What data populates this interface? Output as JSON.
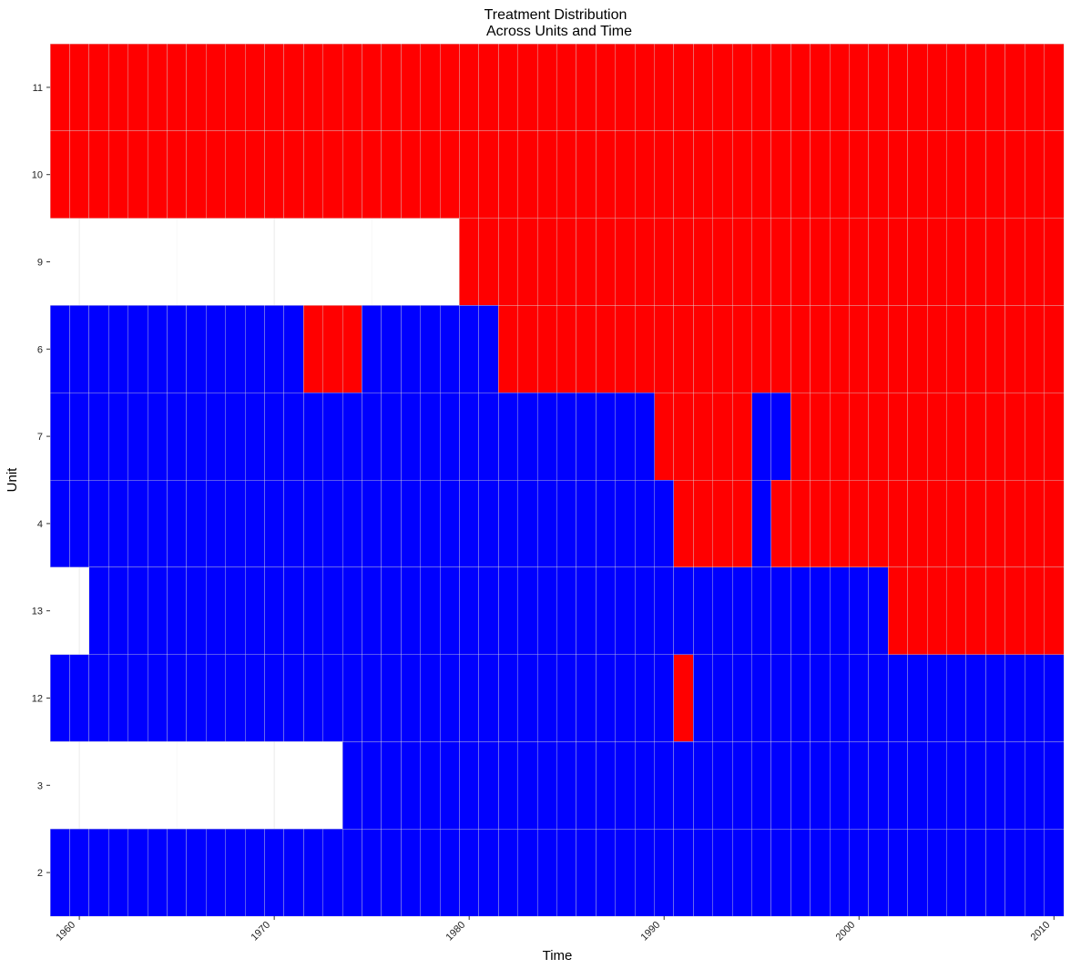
{
  "chart_data": {
    "type": "heatmap",
    "title_line1": "Treatment Distribution",
    "title_line2": "Across Units and Time",
    "xlabel": "Time",
    "ylabel": "Unit",
    "x_ticks": [
      "1960",
      "1970",
      "1980",
      "1990",
      "2000",
      "2010"
    ],
    "x_range": [
      1958.5,
      2010.5
    ],
    "units": [
      "11",
      "10",
      "9",
      "6",
      "7",
      "4",
      "13",
      "12",
      "3",
      "2"
    ],
    "colors": {
      "treated": "#FF0000",
      "control": "#0000FF",
      "missing": "#FFFFFF"
    },
    "grid": true,
    "legend": "none",
    "rows": [
      {
        "unit": "11",
        "segments": [
          {
            "start": 1959,
            "end": 2010,
            "status": "treated"
          }
        ]
      },
      {
        "unit": "10",
        "segments": [
          {
            "start": 1959,
            "end": 2010,
            "status": "treated"
          }
        ]
      },
      {
        "unit": "9",
        "segments": [
          {
            "start": 1980,
            "end": 2010,
            "status": "treated"
          }
        ]
      },
      {
        "unit": "6",
        "segments": [
          {
            "start": 1959,
            "end": 1971,
            "status": "control"
          },
          {
            "start": 1972,
            "end": 1974,
            "status": "treated"
          },
          {
            "start": 1975,
            "end": 1981,
            "status": "control"
          },
          {
            "start": 1982,
            "end": 2010,
            "status": "treated"
          }
        ]
      },
      {
        "unit": "7",
        "segments": [
          {
            "start": 1959,
            "end": 1989,
            "status": "control"
          },
          {
            "start": 1990,
            "end": 1994,
            "status": "treated"
          },
          {
            "start": 1995,
            "end": 1996,
            "status": "control"
          },
          {
            "start": 1997,
            "end": 2010,
            "status": "treated"
          }
        ]
      },
      {
        "unit": "4",
        "segments": [
          {
            "start": 1959,
            "end": 1990,
            "status": "control"
          },
          {
            "start": 1991,
            "end": 1994,
            "status": "treated"
          },
          {
            "start": 1995,
            "end": 1995,
            "status": "control"
          },
          {
            "start": 1996,
            "end": 2010,
            "status": "treated"
          }
        ]
      },
      {
        "unit": "13",
        "segments": [
          {
            "start": 1961,
            "end": 2001,
            "status": "control"
          },
          {
            "start": 2002,
            "end": 2010,
            "status": "treated"
          }
        ]
      },
      {
        "unit": "12",
        "segments": [
          {
            "start": 1959,
            "end": 1990,
            "status": "control"
          },
          {
            "start": 1991,
            "end": 1991,
            "status": "treated"
          },
          {
            "start": 1992,
            "end": 2010,
            "status": "control"
          }
        ]
      },
      {
        "unit": "3",
        "segments": [
          {
            "start": 1974,
            "end": 2010,
            "status": "control"
          }
        ]
      },
      {
        "unit": "2",
        "segments": [
          {
            "start": 1959,
            "end": 2010,
            "status": "control"
          }
        ]
      }
    ]
  }
}
